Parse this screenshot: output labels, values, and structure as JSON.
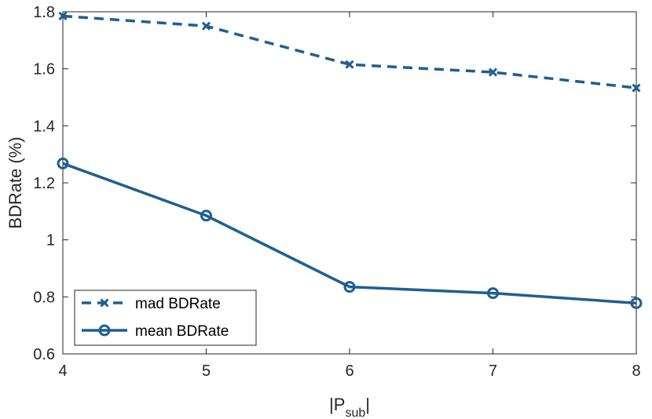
{
  "chart_data": {
    "type": "line",
    "title": "",
    "x": [
      4,
      5,
      6,
      7,
      8
    ],
    "series": [
      {
        "name": "mad BDRate",
        "values": [
          1.785,
          1.75,
          1.615,
          1.588,
          1.533
        ],
        "marker": "x",
        "style": "dashed",
        "color": "#1f5f8f"
      },
      {
        "name": "mean BDRate",
        "values": [
          1.268,
          1.085,
          0.835,
          0.813,
          0.778
        ],
        "marker": "o",
        "style": "solid",
        "color": "#1f5f8f"
      }
    ],
    "xlabel": {
      "pre": "|P",
      "sub": "sub",
      "post": "|"
    },
    "ylabel": "BDRate (%)",
    "xlim": [
      4,
      8
    ],
    "ylim": [
      0.6,
      1.8
    ],
    "xticks": [
      "4",
      "5",
      "6",
      "7",
      "8"
    ],
    "yticks": [
      "0.6",
      "0.8",
      "1",
      "1.2",
      "1.4",
      "1.6",
      "1.8"
    ],
    "grid": false,
    "legend_position": "bottom-left"
  }
}
